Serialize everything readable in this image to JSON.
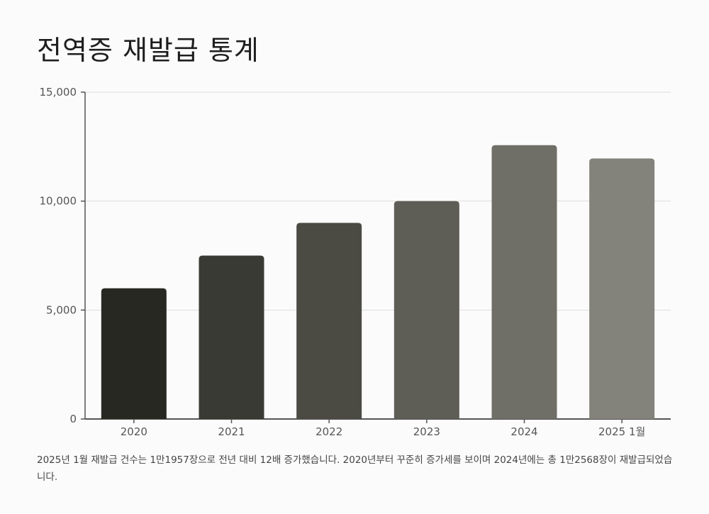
{
  "chart_data": {
    "type": "bar",
    "title": "전역증 재발급 통계",
    "categories": [
      "2020",
      "2021",
      "2022",
      "2023",
      "2024",
      "2025 1월"
    ],
    "values": [
      6000,
      7500,
      9000,
      10000,
      12568,
      11957
    ],
    "ylim": [
      0,
      15000
    ],
    "yticks": [
      0,
      5000,
      10000,
      15000
    ],
    "ytick_labels": [
      "0",
      "5,000",
      "10,000",
      "15,000"
    ],
    "xlabel": "",
    "ylabel": "",
    "grid": true,
    "colors": [
      "#282823",
      "#3a3a35",
      "#4b4b44",
      "#5e5e56",
      "#6f6f67",
      "#83837b"
    ]
  },
  "caption": "2025년 1월 재발급 건수는 1만1957장으로 전년 대비 12배 증가했습니다. 2020년부터 꾸준히 증가세를 보이며 2024년에는 총 1만2568장이 재발급되었습니다."
}
